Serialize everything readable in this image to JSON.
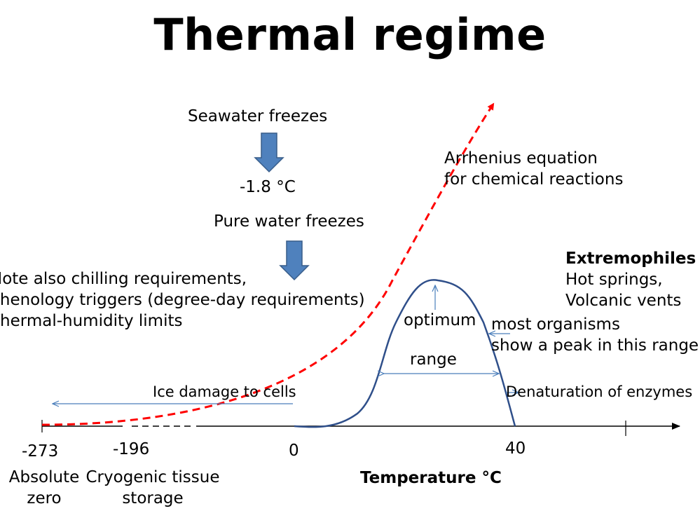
{
  "title": "Thermal regime",
  "freezing": {
    "seawater": "Seawater freezes",
    "seawater_temp": "-1.8 °C",
    "pure_water": "Pure water freezes"
  },
  "arrhenius": {
    "line1": "Arrhenius equation",
    "line2": "for chemical reactions",
    "color": "#ff0000"
  },
  "note": {
    "line1": "Note also chilling requirements,",
    "line2": "Phenology triggers (degree-day requirements)",
    "line3": "Thermal-humidity limits"
  },
  "extremophiles": {
    "heading": "Extremophiles",
    "line1": "Hot springs,",
    "line2": "Volcanic vents"
  },
  "curve_labels": {
    "optimum": "optimum",
    "range": "range",
    "peak_line1": "most organisms",
    "peak_line2": "show a peak in this range",
    "ice_damage": "Ice damage to cells",
    "denaturation": "Denaturation of enzymes"
  },
  "axis": {
    "ticks": [
      "-273",
      "-196",
      "0",
      "40"
    ],
    "absolute_zero": [
      "Absolute",
      "zero"
    ],
    "cryogenic": [
      "Cryogenic tissue",
      "storage"
    ],
    "xlabel": "Temperature °C"
  },
  "colors": {
    "performance_curve": "#2f4f8a",
    "annotation_arrows": "#4a7ebb",
    "block_arrow_fill": "#4f81bd",
    "block_arrow_stroke": "#385d8a"
  }
}
